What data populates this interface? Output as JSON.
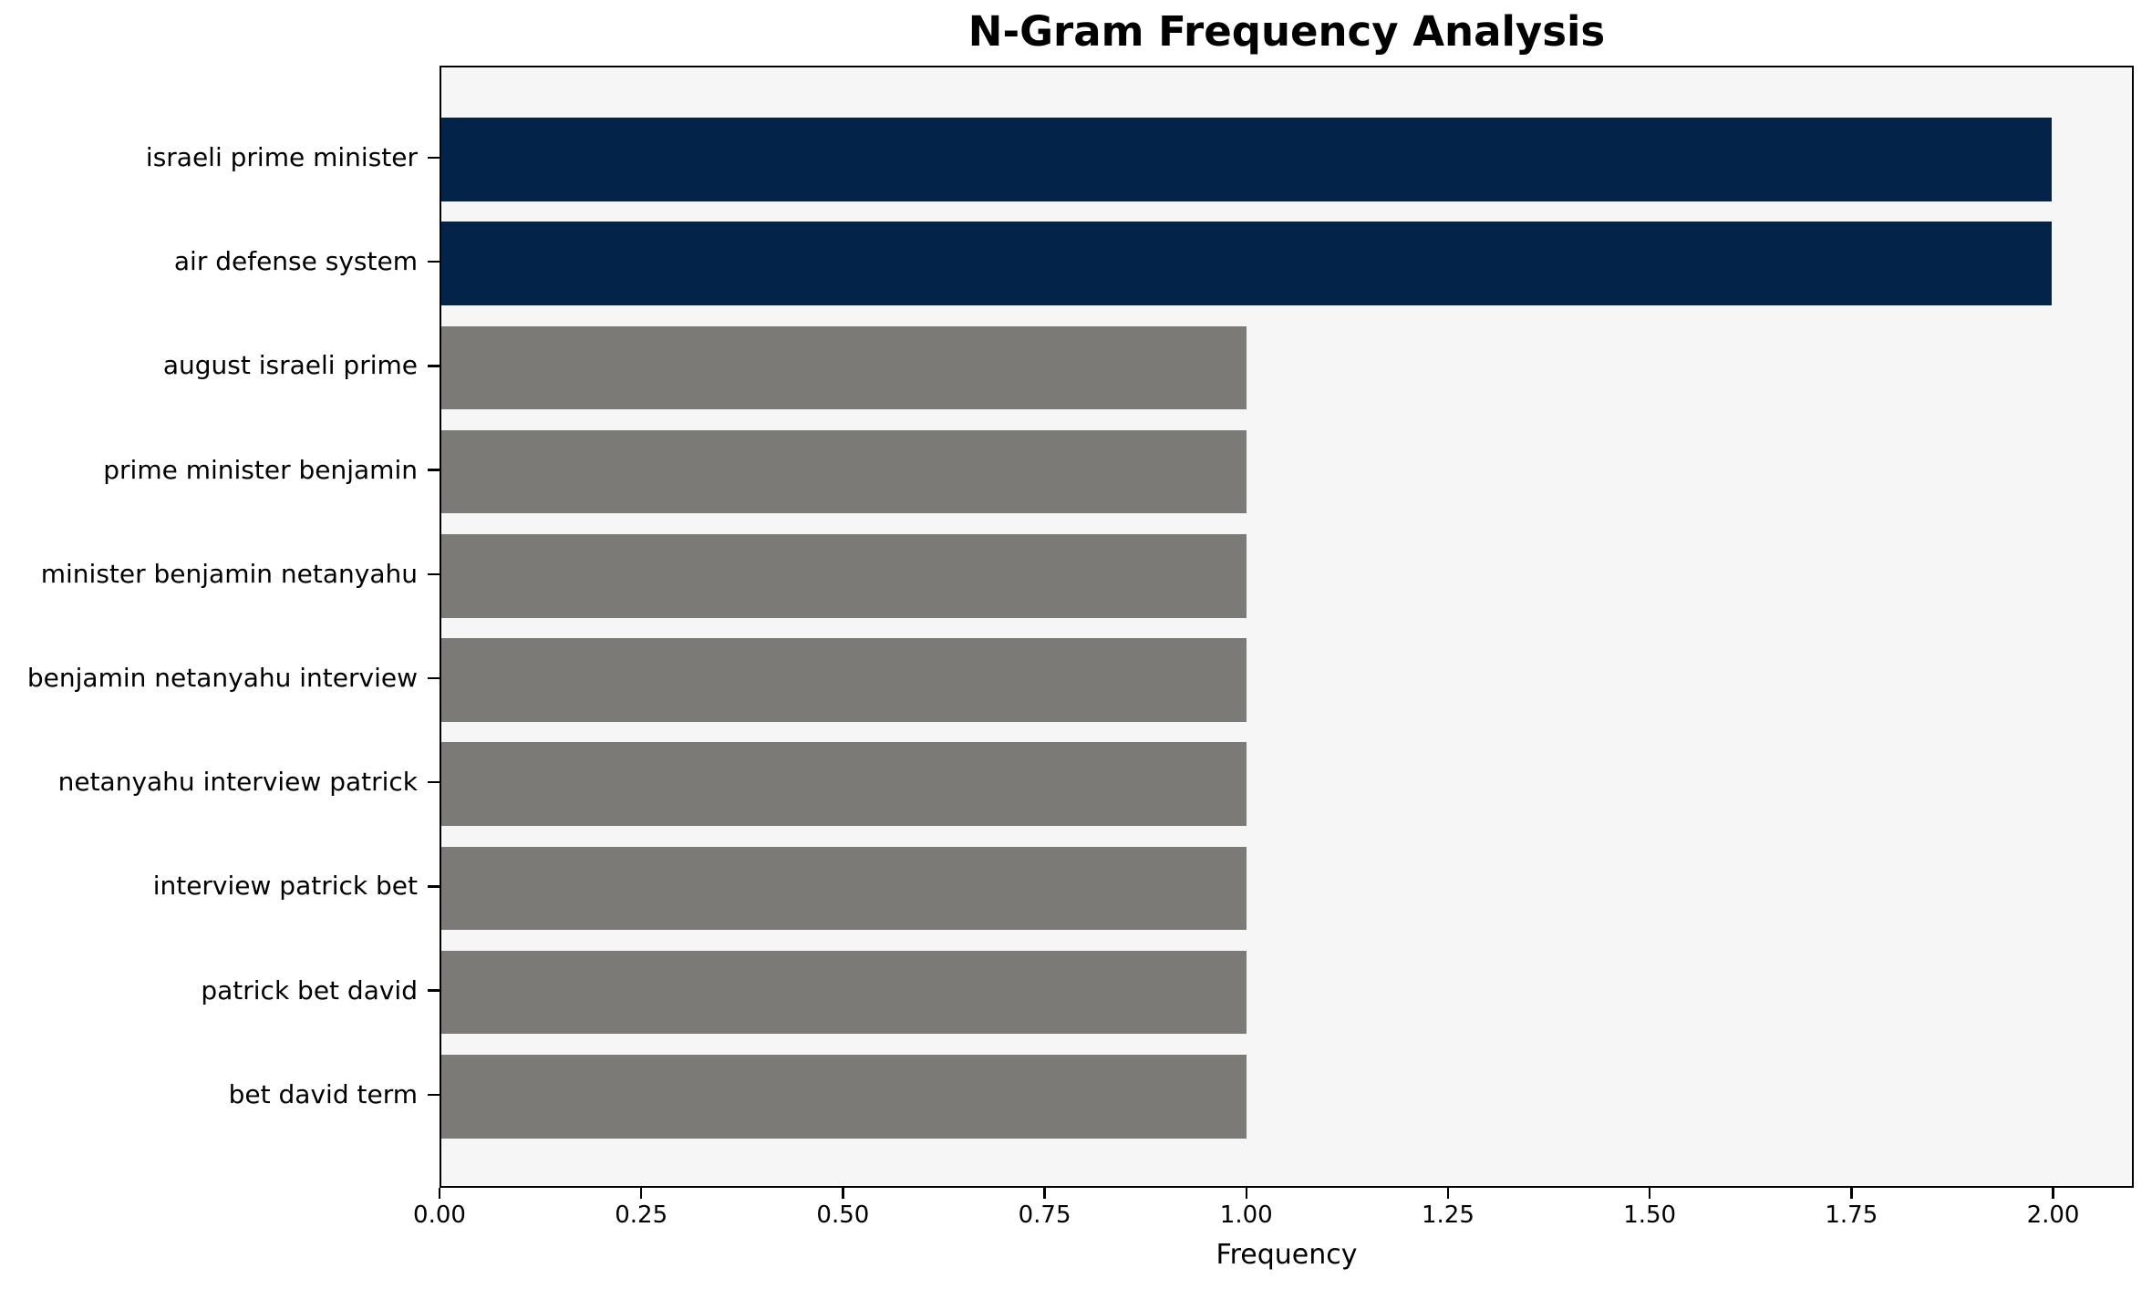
{
  "chart_data": {
    "type": "bar",
    "orientation": "horizontal",
    "title": "N-Gram Frequency Analysis",
    "xlabel": "Frequency",
    "ylabel": "",
    "categories": [
      "israeli prime minister",
      "air defense system",
      "august israeli prime",
      "prime minister benjamin",
      "minister benjamin netanyahu",
      "benjamin netanyahu interview",
      "netanyahu interview patrick",
      "interview patrick bet",
      "patrick bet david",
      "bet david term"
    ],
    "values": [
      2,
      2,
      1,
      1,
      1,
      1,
      1,
      1,
      1,
      1
    ],
    "bar_colors": [
      "#032349",
      "#032349",
      "#7b7a77",
      "#7b7a77",
      "#7b7a77",
      "#7b7a77",
      "#7b7a77",
      "#7b7a77",
      "#7b7a77",
      "#7b7a77"
    ],
    "xlim": [
      0,
      2.1
    ],
    "xticks": [
      0.0,
      0.25,
      0.5,
      0.75,
      1.0,
      1.25,
      1.5,
      1.75,
      2.0
    ],
    "xtick_labels": [
      "0.00",
      "0.25",
      "0.50",
      "0.75",
      "1.00",
      "1.25",
      "1.50",
      "1.75",
      "2.00"
    ],
    "grid": "off",
    "legend": "none"
  },
  "colors": {
    "highlight_bar": "#032349",
    "default_bar": "#7b7a77",
    "plot_background": "#f6f6f6",
    "figure_background": "#ffffff",
    "frame": "#000000",
    "text": "#000000"
  }
}
